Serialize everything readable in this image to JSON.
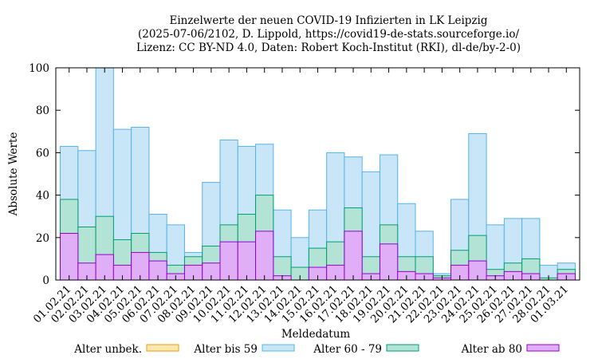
{
  "chart_data": {
    "type": "bar",
    "stacked": true,
    "title_lines": [
      "Einzelwerte der neuen COVID-19 Infizierten in LK Leipzig",
      "(2025-07-06/2102, D. Lippold, https://covid19-de-stats.sourceforge.io/",
      "Lizenz: CC BY-ND 4.0, Daten: Robert Koch-Institut (RKI), dl-de/by-2-0)"
    ],
    "xlabel": "Meldedatum",
    "ylabel": "Absolute Werte",
    "ylim": [
      0,
      100
    ],
    "yticks": [
      0,
      20,
      40,
      60,
      80,
      100
    ],
    "grid": false,
    "legend_position": "bottom",
    "categories": [
      "01.02.21",
      "02.02.21",
      "03.02.21",
      "04.02.21",
      "05.02.21",
      "06.02.21",
      "07.02.21",
      "08.02.21",
      "09.02.21",
      "10.02.21",
      "11.02.21",
      "12.02.21",
      "13.02.21",
      "14.02.21",
      "15.02.21",
      "16.02.21",
      "17.02.21",
      "18.02.21",
      "19.02.21",
      "20.02.21",
      "21.02.21",
      "22.02.21",
      "23.02.21",
      "24.02.21",
      "25.02.21",
      "26.02.21",
      "27.02.21",
      "28.02.21",
      "01.03.21"
    ],
    "series": [
      {
        "name": "Alter unbek.",
        "fill": "#fde7b0",
        "stroke": "#e69f00",
        "totals": [
          0,
          0,
          0,
          0,
          0,
          0,
          0,
          0,
          0,
          0,
          0,
          0,
          0,
          0,
          0,
          0,
          0,
          0,
          0,
          0,
          0,
          0,
          0,
          0,
          0,
          0,
          0,
          0,
          0
        ]
      },
      {
        "name": "Alter bis 59",
        "fill": "#c9e5f8",
        "stroke": "#56b4e9",
        "totals": [
          63,
          61,
          100,
          71,
          72,
          31,
          26,
          13,
          46,
          66,
          63,
          64,
          33,
          20,
          33,
          60,
          58,
          51,
          59,
          36,
          23,
          3,
          38,
          69,
          26,
          29,
          29,
          7,
          8
        ]
      },
      {
        "name": "Alter 60 - 79",
        "fill": "#b3e3d4",
        "stroke": "#009e73",
        "totals": [
          38,
          25,
          30,
          19,
          22,
          13,
          7,
          11,
          16,
          26,
          31,
          40,
          11,
          6,
          15,
          18,
          34,
          11,
          26,
          11,
          11,
          2,
          14,
          21,
          5,
          8,
          10,
          1,
          5
        ]
      },
      {
        "name": "Alter ab 80",
        "fill": "#e0aef6",
        "stroke": "#9400d3",
        "totals": [
          22,
          8,
          12,
          7,
          13,
          9,
          3,
          7,
          8,
          18,
          18,
          23,
          2,
          0,
          6,
          7,
          23,
          3,
          17,
          4,
          3,
          1,
          7,
          9,
          2,
          4,
          3,
          0,
          3
        ]
      }
    ]
  }
}
